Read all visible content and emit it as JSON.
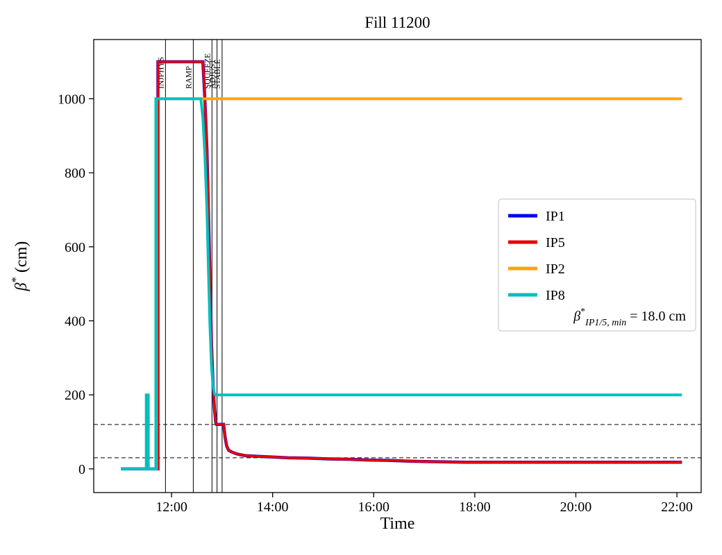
{
  "figure": {
    "title": "Fill 11200"
  },
  "chart_data": {
    "type": "line",
    "title": "Fill 11200",
    "xlabel": "Time",
    "ylabel_parts": {
      "symbol": "β",
      "sup": "*",
      "rest": " (cm)"
    },
    "x_ticks": [
      {
        "hour": 12,
        "label": "12:00"
      },
      {
        "hour": 14,
        "label": "14:00"
      },
      {
        "hour": 16,
        "label": "16:00"
      },
      {
        "hour": 18,
        "label": "18:00"
      },
      {
        "hour": 20,
        "label": "20:00"
      },
      {
        "hour": 22,
        "label": "22:00"
      }
    ],
    "y_ticks": [
      0,
      200,
      400,
      600,
      800,
      1000
    ],
    "xlim_hours": [
      10.46,
      22.48
    ],
    "ylim": [
      -64,
      1160
    ],
    "grid": false,
    "hlines_dashed": [
      120,
      30
    ],
    "phase_lines": [
      {
        "hour": 11.88,
        "label": "INJPHYS"
      },
      {
        "hour": 12.43,
        "label": "RAMP"
      },
      {
        "hour": 12.8,
        "label": "SQUEEZE"
      },
      {
        "hour": 12.9,
        "label": "ADJUST"
      },
      {
        "hour": 13.0,
        "label": "STABLE"
      }
    ],
    "series": [
      {
        "name": "IP1",
        "color": "#0000ee",
        "width": 4.5,
        "points": [
          [
            11.0,
            0
          ],
          [
            11.73,
            0
          ],
          [
            11.73,
            1100
          ],
          [
            12.62,
            1100
          ],
          [
            12.66,
            1000
          ],
          [
            12.7,
            860
          ],
          [
            12.73,
            700
          ],
          [
            12.76,
            520
          ],
          [
            12.79,
            340
          ],
          [
            12.82,
            230
          ],
          [
            12.85,
            160
          ],
          [
            12.875,
            125
          ],
          [
            12.89,
            120
          ],
          [
            13.03,
            120
          ],
          [
            13.06,
            85
          ],
          [
            13.09,
            62
          ],
          [
            13.13,
            50
          ],
          [
            13.2,
            45
          ],
          [
            13.3,
            40
          ],
          [
            13.45,
            36
          ],
          [
            13.7,
            34
          ],
          [
            14.0,
            32
          ],
          [
            14.3,
            30
          ],
          [
            14.7,
            29
          ],
          [
            15.1,
            27
          ],
          [
            15.5,
            26
          ],
          [
            15.9,
            24
          ],
          [
            16.3,
            23
          ],
          [
            16.7,
            21
          ],
          [
            17.0,
            20
          ],
          [
            17.4,
            19
          ],
          [
            17.8,
            18
          ],
          [
            22.1,
            18
          ]
        ]
      },
      {
        "name": "IP5",
        "color": "#e60000",
        "width": 3.5,
        "points": [
          [
            11.0,
            0
          ],
          [
            11.73,
            0
          ],
          [
            11.73,
            1100
          ],
          [
            12.62,
            1100
          ],
          [
            12.66,
            1000
          ],
          [
            12.7,
            860
          ],
          [
            12.73,
            700
          ],
          [
            12.76,
            520
          ],
          [
            12.79,
            340
          ],
          [
            12.82,
            230
          ],
          [
            12.85,
            160
          ],
          [
            12.875,
            125
          ],
          [
            12.89,
            120
          ],
          [
            13.03,
            120
          ],
          [
            13.06,
            85
          ],
          [
            13.09,
            62
          ],
          [
            13.13,
            50
          ],
          [
            13.2,
            45
          ],
          [
            13.3,
            40
          ],
          [
            13.45,
            36
          ],
          [
            13.7,
            34
          ],
          [
            14.0,
            32
          ],
          [
            14.3,
            30
          ],
          [
            14.7,
            29
          ],
          [
            15.1,
            27
          ],
          [
            15.5,
            26
          ],
          [
            15.9,
            24
          ],
          [
            16.3,
            23
          ],
          [
            16.7,
            21
          ],
          [
            17.0,
            20
          ],
          [
            17.4,
            19
          ],
          [
            17.8,
            18
          ],
          [
            22.1,
            18
          ]
        ]
      },
      {
        "name": "IP2",
        "color": "#ffa500",
        "width": 4,
        "points": [
          [
            11.0,
            0
          ],
          [
            11.7,
            0
          ],
          [
            11.7,
            1000
          ],
          [
            22.1,
            1000
          ]
        ]
      },
      {
        "name": "IP8",
        "color": "#00bfbf",
        "width": 4,
        "points": [
          [
            11.0,
            0
          ],
          [
            11.5,
            0
          ],
          [
            11.5,
            200
          ],
          [
            11.54,
            200
          ],
          [
            11.54,
            0
          ],
          [
            11.69,
            0
          ],
          [
            11.69,
            1000
          ],
          [
            12.58,
            1000
          ],
          [
            12.62,
            950
          ],
          [
            12.66,
            850
          ],
          [
            12.7,
            700
          ],
          [
            12.73,
            540
          ],
          [
            12.76,
            390
          ],
          [
            12.79,
            280
          ],
          [
            12.82,
            225
          ],
          [
            12.85,
            202
          ],
          [
            12.87,
            200
          ],
          [
            22.1,
            200
          ]
        ]
      }
    ],
    "legend": {
      "entries": [
        "IP1",
        "IP5",
        "IP2",
        "IP8"
      ],
      "annotation_parts": {
        "symbol": "β",
        "sup": "*",
        "sub": "IP1/5, min",
        "rest": " = 18.0 cm"
      }
    }
  }
}
